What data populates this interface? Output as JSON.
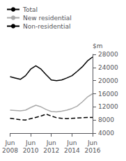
{
  "chart_data": {
    "type": "line",
    "y_label": "$m",
    "categories": [
      "Jun\n2008",
      null,
      null,
      null,
      "Jun\n2010",
      null,
      null,
      null,
      "Jun\n2012",
      null,
      null,
      null,
      "Jun\n2014",
      null,
      null,
      null,
      "Jun\n2016"
    ],
    "series": [
      {
        "name": "Total",
        "color": "#000000",
        "line_style": "solid",
        "values": [
          21200,
          20800,
          20400,
          21500,
          23500,
          24500,
          23500,
          21800,
          20200,
          20000,
          20200,
          20800,
          21500,
          22800,
          24200,
          26000,
          27200
        ]
      },
      {
        "name": "New residential",
        "color": "#aaaaaa",
        "line_style": "solid",
        "values": [
          11000,
          10900,
          10800,
          11000,
          11800,
          12500,
          12000,
          11200,
          10600,
          10500,
          10700,
          11000,
          11500,
          12200,
          13500,
          15000,
          16000
        ]
      },
      {
        "name": "Non-residential",
        "color": "#000000",
        "line_style": "dashed",
        "values": [
          8500,
          8300,
          8100,
          8000,
          8400,
          8800,
          9200,
          9800,
          9200,
          8700,
          8500,
          8400,
          8500,
          8600,
          8700,
          8800,
          8800
        ]
      }
    ],
    "ylim": [
      4000,
      28000
    ],
    "yticks": [
      4000,
      8000,
      12000,
      16000,
      20000,
      24000,
      28000
    ],
    "grid": false,
    "legend": "upper left"
  }
}
